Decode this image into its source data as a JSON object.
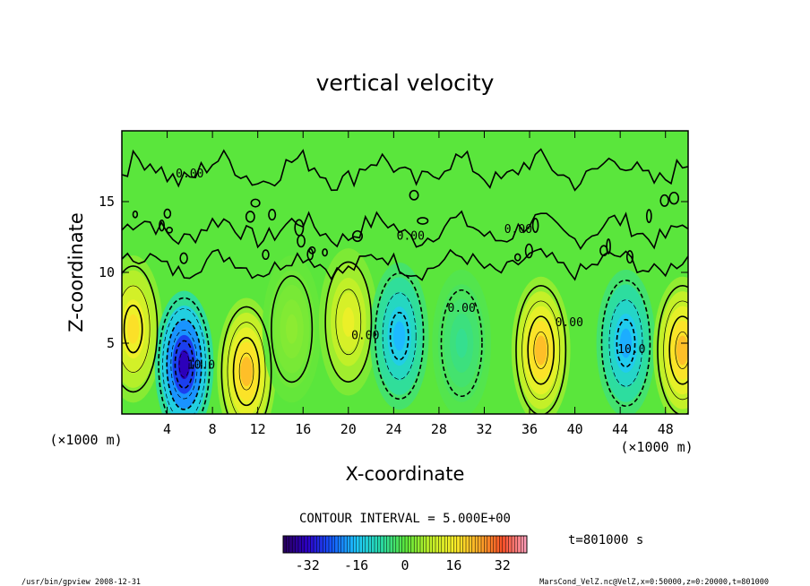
{
  "chart_data": {
    "type": "heatmap",
    "title": "vertical velocity",
    "xlabel": "X-coordinate",
    "ylabel": "Z-coordinate",
    "x_unit": "(×1000 m)",
    "x_unit_right": "(×1000 m)",
    "xlim": [
      0,
      50
    ],
    "ylim": [
      0,
      20
    ],
    "x_ticks": [
      4,
      8,
      12,
      16,
      20,
      24,
      28,
      32,
      36,
      40,
      44,
      48
    ],
    "y_ticks": [
      5,
      10,
      15
    ],
    "contour_interval_label": "CONTOUR INTERVAL = 5.000E+00",
    "contour_labels": [
      {
        "text": "0.00",
        "x": 6.0,
        "z": 16.7
      },
      {
        "text": "0.00",
        "x": 25.5,
        "z": 12.3
      },
      {
        "text": "0.00",
        "x": 35.0,
        "z": 12.8
      },
      {
        "text": "0.00",
        "x": 21.5,
        "z": 5.3
      },
      {
        "text": "0.00",
        "x": 30.0,
        "z": 7.2
      },
      {
        "text": "0.00",
        "x": 39.5,
        "z": 6.2
      },
      {
        "text": "10.0",
        "x": 7.0,
        "z": 3.2
      },
      {
        "text": "10.0",
        "x": 45.0,
        "z": 4.3
      }
    ],
    "cells": [
      {
        "x": 1,
        "z": 6,
        "amp": 18
      },
      {
        "x": 5.5,
        "z": 3.5,
        "amp": -33
      },
      {
        "x": 11,
        "z": 3,
        "amp": 22
      },
      {
        "x": 15,
        "z": 6,
        "amp": 4
      },
      {
        "x": 20,
        "z": 6.5,
        "amp": 14
      },
      {
        "x": 24.5,
        "z": 5.5,
        "amp": -17
      },
      {
        "x": 30,
        "z": 5,
        "amp": -6
      },
      {
        "x": 37,
        "z": 4.5,
        "amp": 22
      },
      {
        "x": 44.5,
        "z": 5,
        "amp": -18
      },
      {
        "x": 49.5,
        "z": 4.5,
        "amp": 22
      }
    ],
    "colorbar": {
      "min": -40,
      "max": 40,
      "ticks": [
        "-32",
        "-16",
        "0",
        "16",
        "32"
      ]
    },
    "time_label": "t=801000 s",
    "footer_left": "/usr/bin/gpview  2008-12-31",
    "footer_right": "MarsCond_VelZ.nc@VelZ,x=0:50000,z=0:20000,t=801000"
  }
}
